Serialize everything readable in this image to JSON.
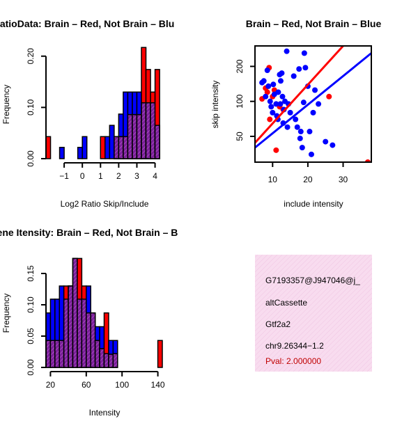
{
  "chart_data": [
    {
      "type": "histogram",
      "title": "RatioData: Brain – Red, Not Brain – Blu",
      "xlabel": "Log2 Ratio Skip/Include",
      "ylabel": "Frequency",
      "xlim": [
        -2.0,
        4.4
      ],
      "ylim": [
        0,
        0.22
      ],
      "xticks": [
        -1,
        0,
        1,
        2,
        3,
        4
      ],
      "xtick_labels": [
        "−1",
        "0",
        "1",
        "2",
        "3",
        "4"
      ],
      "yticks": [
        0.0,
        0.1,
        0.2
      ],
      "ytick_labels": [
        "0.00",
        "0.10",
        "0.20"
      ],
      "bin_edges": [
        -2.0,
        -1.75,
        -1.5,
        -1.25,
        -1.0,
        -0.75,
        -0.5,
        -0.25,
        0.0,
        0.25,
        0.5,
        0.75,
        1.0,
        1.25,
        1.5,
        1.75,
        2.0,
        2.25,
        2.5,
        2.75,
        3.0,
        3.25,
        3.5,
        3.75,
        4.0,
        4.25
      ],
      "series": [
        {
          "name": "Brain",
          "color": "#ff0000",
          "values": [
            0.043,
            0,
            0,
            0,
            0,
            0,
            0,
            0,
            0,
            0,
            0,
            0,
            0.043,
            0,
            0,
            0.043,
            0.043,
            0.043,
            0.086,
            0.086,
            0.086,
            0.217,
            0.174,
            0.13,
            0.174
          ]
        },
        {
          "name": "Not Brain",
          "color": "#0000ff",
          "values": [
            0,
            0,
            0,
            0.022,
            0,
            0,
            0,
            0.022,
            0.043,
            0,
            0,
            0,
            0,
            0.043,
            0.065,
            0.043,
            0.087,
            0.13,
            0.13,
            0.13,
            0.13,
            0.109,
            0.109,
            0.109,
            0.065
          ]
        }
      ]
    },
    {
      "type": "scatter",
      "title": "Brain – Red, Not Brain – Blue",
      "xlabel": "include intensity",
      "ylabel": "skip intensity",
      "log_y": true,
      "xlim": [
        5,
        38
      ],
      "ylim": [
        30,
        300
      ],
      "xticks": [
        10,
        20,
        30
      ],
      "xtick_labels": [
        "10",
        "20",
        "30"
      ],
      "yticks": [
        50,
        100,
        200
      ],
      "ytick_labels": [
        "50",
        "100",
        "200"
      ],
      "series": [
        {
          "name": "Brain",
          "color": "#ff0000",
          "points": [
            [
              7,
              105
            ],
            [
              8,
              130
            ],
            [
              8.5,
              120
            ],
            [
              9,
              195
            ],
            [
              9.2,
              70
            ],
            [
              10,
              110
            ],
            [
              10.5,
              125
            ],
            [
              11,
              38
            ],
            [
              12,
              90
            ],
            [
              13,
              85
            ],
            [
              26,
              110
            ],
            [
              37,
              30
            ]
          ],
          "fit_line": [
            [
              5,
              44
            ],
            [
              30,
              300
            ]
          ]
        },
        {
          "name": "Not Brain",
          "color": "#0000ff",
          "points": [
            [
              7,
              145
            ],
            [
              7.5,
              150
            ],
            [
              8,
              110
            ],
            [
              8.5,
              185
            ],
            [
              8.8,
              135
            ],
            [
              9.3,
              100
            ],
            [
              9.6,
              90
            ],
            [
              10,
              80
            ],
            [
              10.2,
              140
            ],
            [
              10.5,
              115
            ],
            [
              11,
              95
            ],
            [
              11.2,
              75
            ],
            [
              11.5,
              70
            ],
            [
              12,
              170
            ],
            [
              12.3,
              150
            ],
            [
              12.6,
              175
            ],
            [
              12.8,
              110
            ],
            [
              13,
              65
            ],
            [
              13.2,
              85
            ],
            [
              13.5,
              100
            ],
            [
              14,
              270
            ],
            [
              14.2,
              60
            ],
            [
              14.5,
              95
            ],
            [
              15,
              80
            ],
            [
              16,
              165
            ],
            [
              16.5,
              70
            ],
            [
              17,
              60
            ],
            [
              17.5,
              190
            ],
            [
              17.8,
              48
            ],
            [
              18,
              55
            ],
            [
              18.4,
              40
            ],
            [
              18.8,
              98
            ],
            [
              19,
              260
            ],
            [
              19.3,
              195
            ],
            [
              20,
              135
            ],
            [
              20.5,
              55
            ],
            [
              21,
              35
            ],
            [
              21.5,
              80
            ],
            [
              22,
              125
            ],
            [
              23,
              95
            ],
            [
              25,
              45
            ],
            [
              27,
              42
            ],
            [
              11.6,
              120
            ],
            [
              12.2,
              95
            ]
          ],
          "fit_line": [
            [
              5,
              40
            ],
            [
              38,
              260
            ]
          ]
        }
      ]
    },
    {
      "type": "histogram",
      "title": "Gene Itensity: Brain – Red, Not Brain – B",
      "xlabel": "Intensity",
      "ylabel": "Frequency",
      "xlim": [
        15,
        145
      ],
      "ylim": [
        0,
        0.18
      ],
      "xticks": [
        20,
        60,
        100,
        140
      ],
      "xtick_labels": [
        "20",
        "60",
        "100",
        "140"
      ],
      "yticks": [
        0.0,
        0.05,
        0.1,
        0.15
      ],
      "ytick_labels": [
        "0.00",
        "0.05",
        "0.10",
        "0.15"
      ],
      "bin_edges": [
        15,
        20,
        25,
        30,
        35,
        40,
        45,
        50,
        55,
        60,
        65,
        70,
        75,
        80,
        85,
        90,
        95,
        100,
        105,
        110,
        115,
        120,
        125,
        130,
        135,
        140,
        145
      ],
      "series": [
        {
          "name": "Brain",
          "color": "#ff0000",
          "values": [
            0.043,
            0.043,
            0.043,
            0.043,
            0.13,
            0.13,
            0.174,
            0.174,
            0.13,
            0.087,
            0.087,
            0.043,
            0.03,
            0.087,
            0.021,
            0.022,
            0,
            0,
            0,
            0,
            0,
            0,
            0,
            0,
            0,
            0.043
          ]
        },
        {
          "name": "Not Brain",
          "color": "#0000ff",
          "values": [
            0.087,
            0.109,
            0.109,
            0.13,
            0.109,
            0.13,
            0.174,
            0.109,
            0.109,
            0.13,
            0.087,
            0.065,
            0.065,
            0.022,
            0.043,
            0.043,
            0,
            0,
            0,
            0,
            0,
            0,
            0,
            0,
            0,
            0
          ]
        }
      ]
    }
  ],
  "info_panel": {
    "bg_color": "#f6d6ec",
    "lines": [
      "G7193357@J947046@j_",
      "altCassette",
      "Gtf2a2",
      "chr9.26344−1.2"
    ],
    "pval": "Pval: 2.000000"
  },
  "colors": {
    "brain": "#ff0000",
    "not_brain": "#0000ff",
    "overlap": "#8b1a9b"
  }
}
